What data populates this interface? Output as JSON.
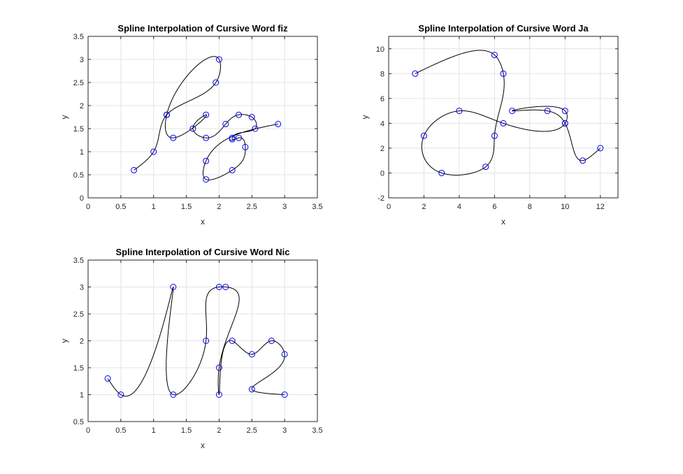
{
  "chart_data": [
    {
      "type": "line",
      "title": "Spline Interpolation of Cursive Word fiz",
      "xlabel": "x",
      "ylabel": "y",
      "xlim": [
        0,
        3.5
      ],
      "ylim": [
        0,
        3.5
      ],
      "xticks": [
        0,
        0.5,
        1,
        1.5,
        2,
        2.5,
        3,
        3.5
      ],
      "yticks": [
        0,
        0.5,
        1,
        1.5,
        2,
        2.5,
        3,
        3.5
      ],
      "grid": true,
      "colors": {
        "curve": "#000000",
        "markers": "#0000ff"
      },
      "series": [
        {
          "marker": "circle",
          "x": [
            0.7,
            1.0,
            1.2,
            1.95,
            2.0,
            1.2,
            1.3,
            1.8,
            1.6,
            1.8,
            2.1,
            2.3,
            2.5,
            2.55,
            2.2,
            2.2,
            2.3,
            2.4,
            2.2,
            1.8,
            1.8,
            2.9
          ],
          "y": [
            0.6,
            1.0,
            1.8,
            2.5,
            3.0,
            1.8,
            1.3,
            1.8,
            1.5,
            1.3,
            1.6,
            1.8,
            1.75,
            1.5,
            1.3,
            1.27,
            1.3,
            1.1,
            0.6,
            0.4,
            0.8,
            1.6
          ]
        }
      ]
    },
    {
      "type": "line",
      "title": "Spline Interpolation of Cursive Word Ja",
      "xlabel": "x",
      "ylabel": "y",
      "xlim": [
        0,
        13
      ],
      "ylim": [
        -2,
        11
      ],
      "xticks": [
        0,
        2,
        4,
        6,
        8,
        10,
        12
      ],
      "yticks": [
        -2,
        0,
        2,
        4,
        6,
        8,
        10
      ],
      "grid": true,
      "colors": {
        "curve": "#000000",
        "markers": "#0000ff"
      },
      "series": [
        {
          "marker": "circle",
          "x": [
            1.5,
            6.0,
            6.5,
            6.0,
            5.5,
            3.0,
            2.0,
            4.0,
            6.5,
            10.0,
            10.0,
            7.0,
            9.0,
            10.0,
            11.0,
            12.0
          ],
          "y": [
            8.0,
            9.5,
            8.0,
            3.0,
            0.5,
            0.0,
            3.0,
            5.0,
            4.0,
            4.0,
            5.0,
            5.0,
            5.0,
            4.0,
            1.0,
            2.0
          ]
        }
      ]
    },
    {
      "type": "line",
      "title": "Spline Interpolation of Cursive Word Nic",
      "xlabel": "x",
      "ylabel": "y",
      "xlim": [
        0,
        3.5
      ],
      "ylim": [
        0.5,
        3.5
      ],
      "xticks": [
        0,
        0.5,
        1,
        1.5,
        2,
        2.5,
        3,
        3.5
      ],
      "yticks": [
        0.5,
        1,
        1.5,
        2,
        2.5,
        3,
        3.5
      ],
      "grid": true,
      "colors": {
        "curve": "#000000",
        "markers": "#0000ff"
      },
      "series": [
        {
          "marker": "circle",
          "x": [
            0.3,
            0.5,
            1.3,
            1.3,
            1.8,
            2.0,
            2.1,
            2.0,
            2.0,
            2.2,
            2.5,
            2.8,
            3.0,
            2.5,
            3.0
          ],
          "y": [
            1.3,
            1.0,
            3.0,
            1.0,
            2.0,
            3.0,
            3.0,
            1.5,
            1.0,
            2.0,
            1.75,
            2.0,
            1.75,
            1.1,
            1.0
          ]
        }
      ]
    }
  ]
}
